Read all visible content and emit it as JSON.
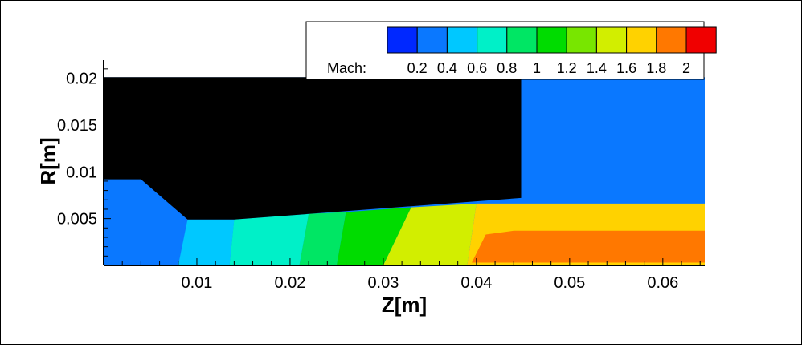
{
  "chart_data": {
    "type": "heatmap",
    "xlabel": "Z[m]",
    "ylabel": "R[m]",
    "xlim": [
      0,
      0.0645
    ],
    "ylim": [
      0,
      0.0215
    ],
    "x_ticks": [
      "0.01",
      "0.02",
      "0.03",
      "0.04",
      "0.05",
      "0.06"
    ],
    "y_ticks": [
      "0.005",
      "0.01",
      "0.015",
      "0.02"
    ],
    "legend": {
      "title": "Mach:",
      "labels": [
        "0.2",
        "0.4",
        "0.6",
        "0.8",
        "1",
        "1.2",
        "1.4",
        "1.6",
        "1.8",
        "2"
      ],
      "colors": [
        "#0028ff",
        "#0a78ff",
        "#00c8ff",
        "#00f0c8",
        "#00e664",
        "#00dc00",
        "#78e600",
        "#d2ee00",
        "#ffd200",
        "#ff7800",
        "#f00000"
      ],
      "placement": "top-right"
    },
    "solid_body": [
      [
        0.0,
        0.0108
      ],
      [
        0.0,
        0.0201
      ],
      [
        0.0448,
        0.0201
      ],
      [
        0.0448,
        0.0072
      ],
      [
        0.014,
        0.0049
      ],
      [
        0.009,
        0.0049
      ],
      [
        0.004,
        0.0092
      ],
      [
        0.0,
        0.0092
      ]
    ],
    "contour_bands": [
      {
        "mach": 0.2,
        "polygon": [
          [
            0.0,
            0.0
          ],
          [
            0.0,
            0.0092
          ],
          [
            0.004,
            0.0092
          ],
          [
            0.009,
            0.0049
          ],
          [
            0.005,
            0.0
          ]
        ]
      },
      {
        "mach": 0.35,
        "polygon": [
          [
            0.005,
            0.0
          ],
          [
            0.008,
            0.0049
          ],
          [
            0.009,
            0.0049
          ],
          [
            0.008,
            0.0
          ]
        ]
      },
      {
        "mach": 0.55,
        "polygon": [
          [
            0.008,
            0.0
          ],
          [
            0.009,
            0.0049
          ],
          [
            0.014,
            0.0049
          ],
          [
            0.0135,
            0.0
          ]
        ]
      },
      {
        "mach": 0.75,
        "polygon": [
          [
            0.0135,
            0.0
          ],
          [
            0.014,
            0.0049
          ],
          [
            0.022,
            0.0055
          ],
          [
            0.021,
            0.0
          ]
        ]
      },
      {
        "mach": 0.95,
        "polygon": [
          [
            0.021,
            0.0
          ],
          [
            0.022,
            0.0055
          ],
          [
            0.026,
            0.0057
          ],
          [
            0.025,
            0.0
          ]
        ]
      },
      {
        "mach": 1.2,
        "polygon": [
          [
            0.025,
            0.0
          ],
          [
            0.026,
            0.0057
          ],
          [
            0.033,
            0.0062
          ],
          [
            0.03,
            0.0
          ]
        ]
      },
      {
        "mach": 1.5,
        "polygon": [
          [
            0.03,
            0.0
          ],
          [
            0.033,
            0.0062
          ],
          [
            0.04,
            0.0066
          ],
          [
            0.039,
            0.0
          ]
        ]
      },
      {
        "mach": 1.7,
        "polygon": [
          [
            0.039,
            0.0
          ],
          [
            0.04,
            0.0066
          ],
          [
            0.0645,
            0.0066
          ],
          [
            0.0645,
            0.0
          ]
        ]
      },
      {
        "mach": 1.9,
        "polygon": [
          [
            0.0395,
            0.0003
          ],
          [
            0.041,
            0.0033
          ],
          [
            0.044,
            0.0037
          ],
          [
            0.0645,
            0.0037
          ],
          [
            0.0645,
            0.0003
          ]
        ]
      }
    ],
    "free_jet_mach": 0.2
  }
}
